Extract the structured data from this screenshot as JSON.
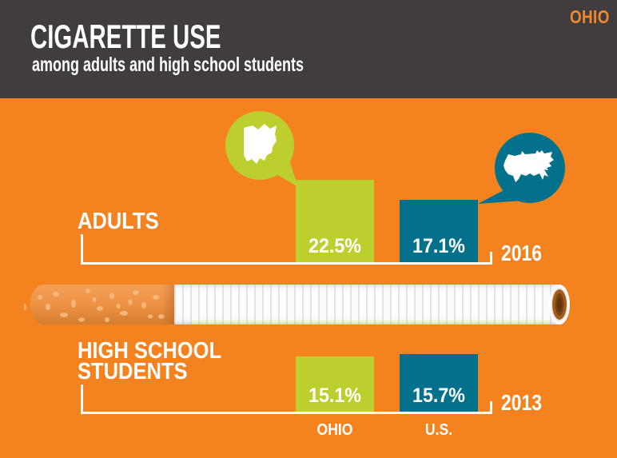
{
  "colors": {
    "orange": "#F4831F",
    "header-bg": "#413D3E",
    "brand-orange": "#F0882D",
    "green": "#BCCF2F",
    "teal": "#03718C"
  },
  "header": {
    "brand": "OHIO",
    "title": "CIGARETTE USE",
    "subtitle": "among adults and high school students"
  },
  "adults": {
    "label": "ADULTS",
    "year": "2016",
    "ohio_value": "22.5%",
    "us_value": "17.1%"
  },
  "students": {
    "label_line1": "HIGH SCHOOL",
    "label_line2": "STUDENTS",
    "year": "2013",
    "ohio_value": "15.1%",
    "us_value": "15.7%"
  },
  "axis": {
    "ohio_label": "OHIO",
    "us_label": "U.S."
  },
  "icons": {
    "green_bubble": "ohio-state-map",
    "teal_bubble": "us-map",
    "divider": "cigarette-illustration"
  },
  "chart_data": [
    {
      "type": "bar",
      "title": "CIGARETTE USE among adults",
      "year": "2016",
      "categories": [
        "OHIO",
        "U.S."
      ],
      "values": [
        22.5,
        17.1
      ],
      "unit": "%",
      "colors": [
        "#BCCF2F",
        "#03718C"
      ],
      "grid": false,
      "legend_position": "none"
    },
    {
      "type": "bar",
      "title": "CIGARETTE USE among high school students",
      "year": "2013",
      "categories": [
        "OHIO",
        "U.S."
      ],
      "values": [
        15.1,
        15.7
      ],
      "unit": "%",
      "colors": [
        "#BCCF2F",
        "#03718C"
      ],
      "grid": false,
      "legend_position": "none"
    }
  ]
}
